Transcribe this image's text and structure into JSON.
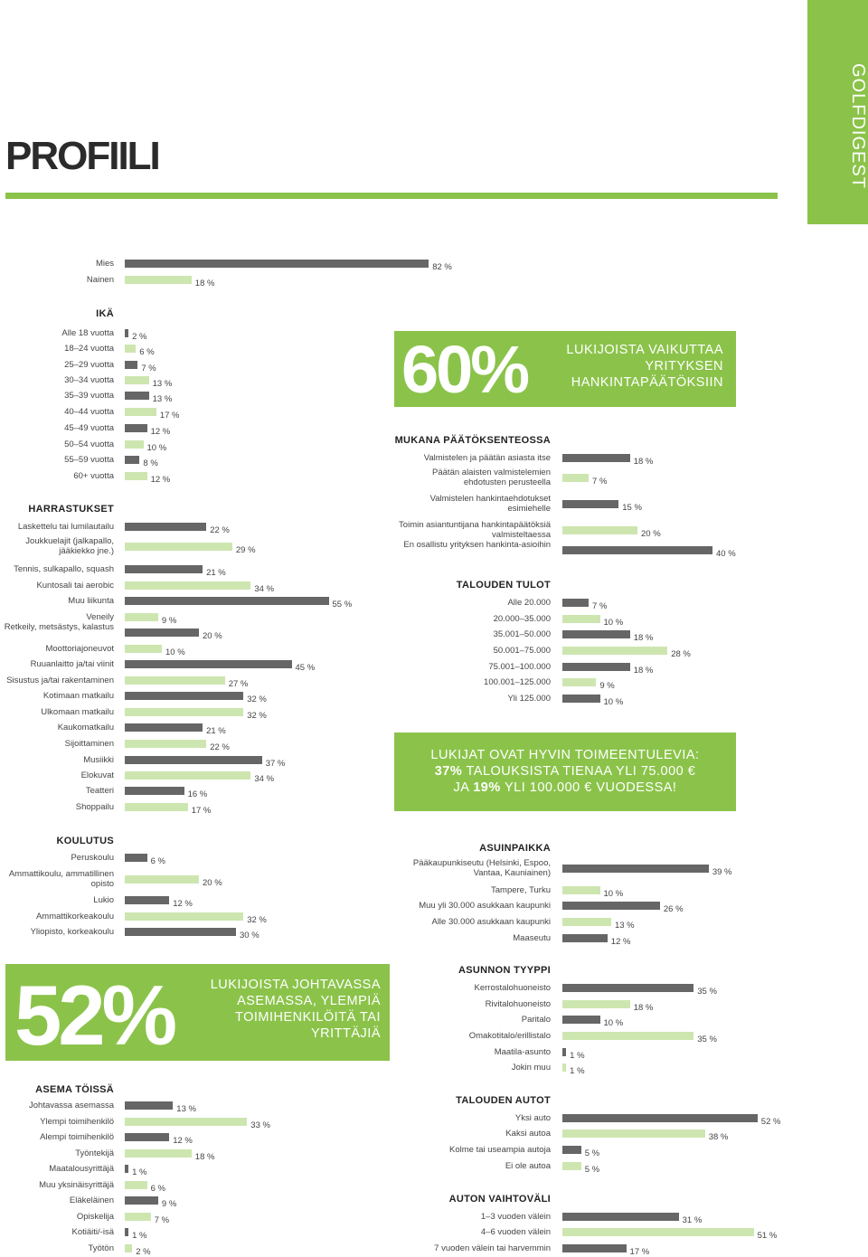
{
  "brand": "GOLFDIGEST",
  "page_title": "PROFIILI",
  "colors": {
    "accent": "#8bc34a",
    "bar_dark": "#666666",
    "bar_light": "#cde6b0"
  },
  "callouts": {
    "decision": {
      "number": "60%",
      "text": "LUKIJOISTA VAIKUTTAA YRITYKSEN HANKINTAPÄÄTÖKSIIN"
    },
    "income": {
      "line1": "LUKIJAT OVAT HYVIN TOIMEENTULEVIA:",
      "line2_bold": "37%",
      "line2": " TALOUKSISTA TIENAA YLI 75.000 €",
      "line3_pre": "JA ",
      "line3_bold": "19%",
      "line3": " YLI 100.000 € VUODESSA!"
    },
    "position": {
      "number": "52%",
      "text": "LUKIJOISTA JOHTAVASSA ASEMASSA, YLEMPIÄ TOIMIHENKILÖITÄ TAI YRITTÄJIÄ"
    }
  },
  "chart_data": [
    {
      "id": "gender",
      "type": "bar",
      "title": "",
      "categories": [
        "Mies",
        "Nainen"
      ],
      "values": [
        82,
        18
      ],
      "unit": "%"
    },
    {
      "id": "age",
      "type": "bar",
      "title": "IKÄ",
      "categories": [
        "Alle 18 vuotta",
        "18–24 vuotta",
        "25–29 vuotta",
        "30–34 vuotta",
        "35–39 vuotta",
        "40–44 vuotta",
        "45–49 vuotta",
        "50–54 vuotta",
        "55–59 vuotta",
        "60+ vuotta"
      ],
      "values": [
        2,
        6,
        7,
        13,
        13,
        17,
        12,
        10,
        8,
        12
      ],
      "unit": "%"
    },
    {
      "id": "hobbies",
      "type": "bar",
      "title": "HARRASTUKSET",
      "categories": [
        "Laskettelu tai lumilautailu",
        "Joukkuelajit (jalkapallo, jääkiekko jne.)",
        "Tennis, sulkapallo, squash",
        "Kuntosali tai aerobic",
        "Muu liikunta",
        "Veneily",
        "Retkeily, metsästys, kalastus",
        "Moottoriajoneuvot",
        "Ruuanlaitto ja/tai viinit",
        "Sisustus ja/tai rakentaminen",
        "Kotimaan matkailu",
        "Ulkomaan matkailu",
        "Kaukomatkailu",
        "Sijoittaminen",
        "Musiikki",
        "Elokuvat",
        "Teatteri",
        "Shoppailu"
      ],
      "values": [
        22,
        29,
        21,
        34,
        55,
        9,
        20,
        10,
        45,
        27,
        32,
        32,
        21,
        22,
        37,
        34,
        16,
        17
      ],
      "unit": "%"
    },
    {
      "id": "education",
      "type": "bar",
      "title": "KOULUTUS",
      "categories": [
        "Peruskoulu",
        "Ammattikoulu, ammatillinen opisto",
        "Lukio",
        "Ammattikorkeakoulu",
        "Yliopisto, korkeakoulu"
      ],
      "values": [
        6,
        20,
        12,
        32,
        30
      ],
      "unit": "%"
    },
    {
      "id": "position",
      "type": "bar",
      "title": "ASEMA TÖISSÄ",
      "categories": [
        "Johtavassa asemassa",
        "Ylempi toimihenkilö",
        "Alempi toimihenkilö",
        "Työntekijä",
        "Maatalousyrittäjä",
        "Muu yksinäisyrittäjä",
        "Eläkeläinen",
        "Opiskelija",
        "Kotiäiti/-isä",
        "Työtön"
      ],
      "values": [
        13,
        33,
        12,
        18,
        1,
        6,
        9,
        7,
        1,
        2
      ],
      "unit": "%"
    },
    {
      "id": "decisions",
      "type": "bar",
      "title": "MUKANA PÄÄTÖKSENTEOSSA",
      "categories": [
        "Valmistelen ja päätän asiasta itse",
        "Päätän alaisten valmistelemien ehdotusten perusteella",
        "Valmistelen hankintaehdotukset esimiehelle",
        "Toimin asiantuntijana hankintapäätöksiä valmisteltaessa",
        "En osallistu yrityksen hankinta-asioihin"
      ],
      "values": [
        18,
        7,
        15,
        20,
        40
      ],
      "unit": "%"
    },
    {
      "id": "income",
      "type": "bar",
      "title": "TALOUDEN TULOT",
      "categories": [
        "Alle 20.000",
        "20.000–35.000",
        "35.001–50.000",
        "50.001–75.000",
        "75.001–100.000",
        "100.001–125.000",
        "Yli 125.000"
      ],
      "values": [
        7,
        10,
        18,
        28,
        18,
        9,
        10
      ],
      "unit": "%"
    },
    {
      "id": "residence",
      "type": "bar",
      "title": "ASUINPAIKKA",
      "categories": [
        "Pääkaupunkiseutu (Helsinki, Espoo, Vantaa, Kauniainen)",
        "Tampere, Turku",
        "Muu yli 30.000 asukkaan kaupunki",
        "Alle 30.000 asukkaan kaupunki",
        "Maaseutu"
      ],
      "values": [
        39,
        10,
        26,
        13,
        12
      ],
      "unit": "%"
    },
    {
      "id": "housing",
      "type": "bar",
      "title": "ASUNNON TYYPPI",
      "categories": [
        "Kerrostalohuoneisto",
        "Rivitalohuoneisto",
        "Paritalo",
        "Omakotitalo/erillistalo",
        "Maatila-asunto",
        "Jokin muu"
      ],
      "values": [
        35,
        18,
        10,
        35,
        1,
        1
      ],
      "unit": "%"
    },
    {
      "id": "cars",
      "type": "bar",
      "title": "TALOUDEN AUTOT",
      "categories": [
        "Yksi auto",
        "Kaksi autoa",
        "Kolme tai useampia autoja",
        "Ei ole autoa"
      ],
      "values": [
        52,
        38,
        5,
        5
      ],
      "unit": "%"
    },
    {
      "id": "car_change",
      "type": "bar",
      "title": "AUTON VAIHTOVÄLI",
      "categories": [
        "1–3 vuoden välein",
        "4–6 vuoden välein",
        "7 vuoden välein tai harvemmin"
      ],
      "values": [
        31,
        51,
        17
      ],
      "unit": "%"
    }
  ]
}
